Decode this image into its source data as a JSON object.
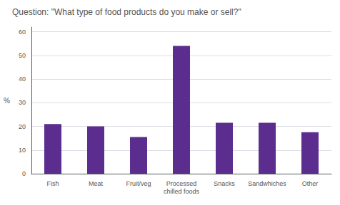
{
  "chart_data": {
    "type": "bar",
    "title": "Question: \"What type of food products do you make or sell?\"",
    "ylabel": "%",
    "categories": [
      "Fish",
      "Meat",
      "Fruit/veg",
      "Processed\nchilled foods",
      "Snacks",
      "Sandwhiches",
      "Other"
    ],
    "values": [
      21,
      20,
      15.5,
      54,
      21.5,
      21.5,
      17.5
    ],
    "color": "#5b2d8e",
    "ylim": [
      0,
      62
    ],
    "yticks": [
      0,
      10,
      20,
      30,
      40,
      50,
      60
    ],
    "grid": true
  }
}
